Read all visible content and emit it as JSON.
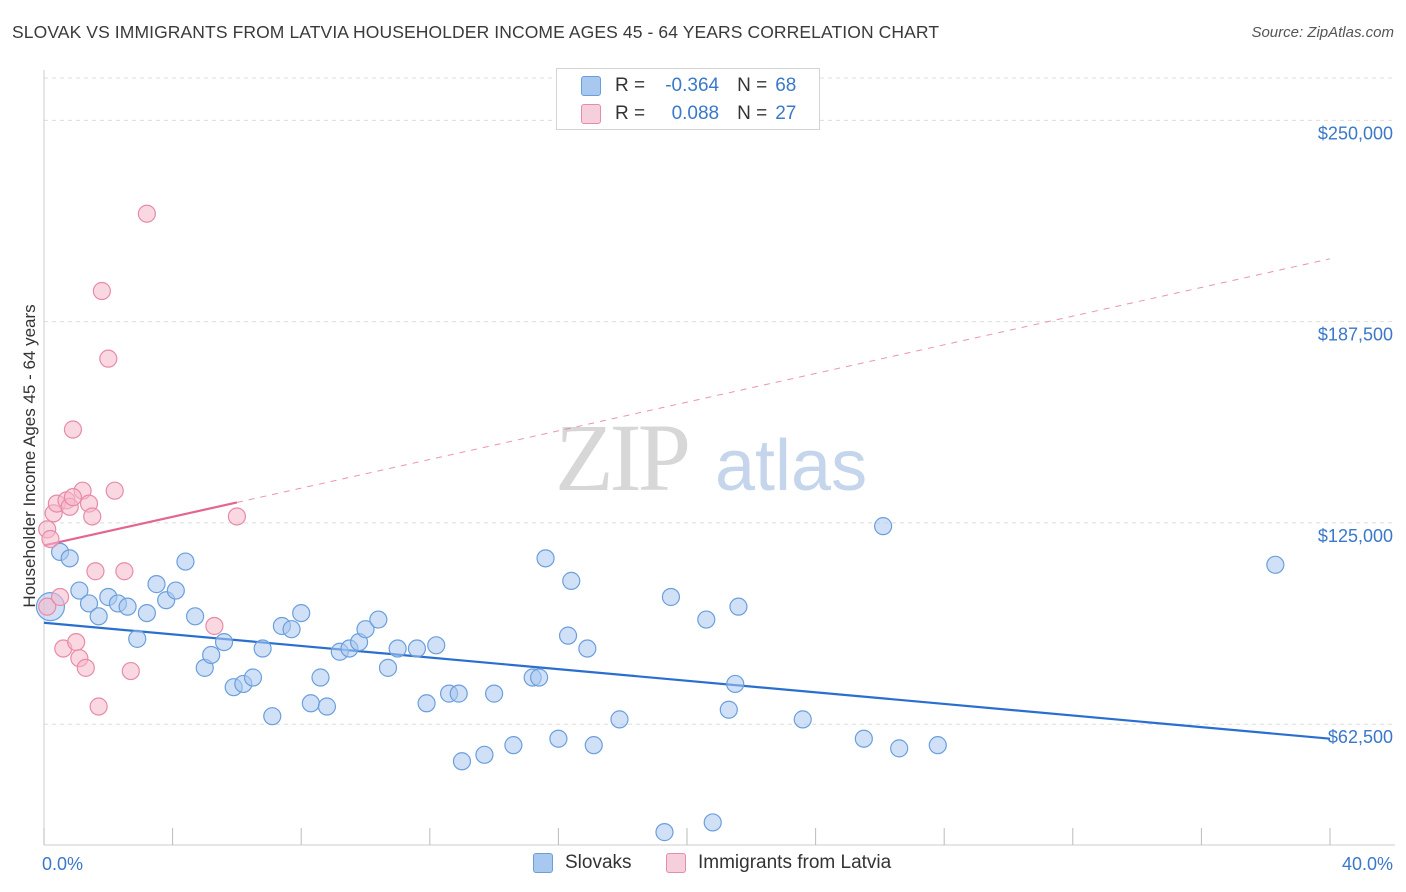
{
  "title": "SLOVAK VS IMMIGRANTS FROM LATVIA HOUSEHOLDER INCOME AGES 45 - 64 YEARS CORRELATION CHART",
  "source": "Source: ZipAtlas.com",
  "watermark": {
    "zip": "ZIP",
    "atlas": "atlas"
  },
  "colors": {
    "blue_fill": "#a9c8f0",
    "blue_stroke": "#6b9fdc",
    "blue_line": "#2a6fcf",
    "pink_fill": "#f6b8cb",
    "pink_stroke": "#e88ba8",
    "pink_line": "#e46592",
    "axis_text": "#3a78c9",
    "grid": "#dddddd"
  },
  "legend": {
    "rows": [
      {
        "r_label": "R =",
        "r_value": "-0.364",
        "n_label": "N =",
        "n_value": "68"
      },
      {
        "r_label": "R =",
        "r_value": "0.088",
        "n_label": "N =",
        "n_value": "27"
      }
    ]
  },
  "bottom_legend": {
    "series1": "Slovaks",
    "series2": "Immigrants from Latvia"
  },
  "chart_data": {
    "type": "scatter",
    "title": "SLOVAK VS IMMIGRANTS FROM LATVIA HOUSEHOLDER INCOME AGES 45 - 64 YEARS CORRELATION CHART",
    "xlabel": "",
    "ylabel": "Householder Income Ages 45 - 64 years",
    "xlim": [
      0,
      40
    ],
    "ylim": [
      25000,
      265000
    ],
    "x_tick_labels": {
      "left": "0.0%",
      "right": "40.0%"
    },
    "y_ticks": [
      {
        "value": 62500,
        "label": "$62,500"
      },
      {
        "value": 125000,
        "label": "$125,000"
      },
      {
        "value": 187500,
        "label": "$187,500"
      },
      {
        "value": 250000,
        "label": "$250,000"
      }
    ],
    "x_minor_ticks": [
      0,
      4,
      8,
      12,
      16,
      20,
      24,
      28,
      32,
      36,
      40
    ],
    "series": [
      {
        "name": "Slovaks",
        "color": "blue",
        "r": -0.364,
        "n": 68,
        "trend": {
          "x0": 0,
          "y0": 94000,
          "x1": 40,
          "y1": 58000,
          "dashed_from": null
        },
        "points": [
          [
            0.2,
            99000
          ],
          [
            0.5,
            116000
          ],
          [
            0.8,
            114000
          ],
          [
            1.1,
            104000
          ],
          [
            1.4,
            100000
          ],
          [
            1.7,
            96000
          ],
          [
            2.0,
            102000
          ],
          [
            2.3,
            100000
          ],
          [
            2.6,
            99000
          ],
          [
            2.9,
            89000
          ],
          [
            3.2,
            97000
          ],
          [
            3.5,
            106000
          ],
          [
            3.8,
            101000
          ],
          [
            4.1,
            104000
          ],
          [
            4.4,
            113000
          ],
          [
            4.7,
            96000
          ],
          [
            5.0,
            80000
          ],
          [
            5.2,
            84000
          ],
          [
            5.6,
            88000
          ],
          [
            5.9,
            74000
          ],
          [
            6.2,
            75000
          ],
          [
            6.5,
            77000
          ],
          [
            6.8,
            86000
          ],
          [
            7.1,
            65000
          ],
          [
            7.4,
            93000
          ],
          [
            7.7,
            92000
          ],
          [
            8.0,
            97000
          ],
          [
            8.3,
            69000
          ],
          [
            8.6,
            77000
          ],
          [
            8.8,
            68000
          ],
          [
            9.2,
            85000
          ],
          [
            9.5,
            86000
          ],
          [
            9.8,
            88000
          ],
          [
            10.0,
            92000
          ],
          [
            10.4,
            95000
          ],
          [
            10.7,
            80000
          ],
          [
            11.0,
            86000
          ],
          [
            11.6,
            86000
          ],
          [
            11.9,
            69000
          ],
          [
            12.2,
            87000
          ],
          [
            12.6,
            72000
          ],
          [
            12.9,
            72000
          ],
          [
            13.0,
            51000
          ],
          [
            13.7,
            53000
          ],
          [
            14.0,
            72000
          ],
          [
            14.6,
            56000
          ],
          [
            15.2,
            77000
          ],
          [
            15.4,
            77000
          ],
          [
            15.6,
            114000
          ],
          [
            16.0,
            58000
          ],
          [
            16.3,
            90000
          ],
          [
            16.4,
            107000
          ],
          [
            16.9,
            86000
          ],
          [
            17.1,
            56000
          ],
          [
            17.9,
            64000
          ],
          [
            19.5,
            102000
          ],
          [
            19.3,
            29000
          ],
          [
            20.6,
            95000
          ],
          [
            20.8,
            32000
          ],
          [
            21.3,
            67000
          ],
          [
            21.5,
            75000
          ],
          [
            21.6,
            99000
          ],
          [
            23.6,
            64000
          ],
          [
            25.5,
            58000
          ],
          [
            26.1,
            124000
          ],
          [
            26.6,
            55000
          ],
          [
            27.8,
            56000
          ],
          [
            38.3,
            112000
          ]
        ]
      },
      {
        "name": "Immigrants from Latvia",
        "color": "pink",
        "r": 0.088,
        "n": 27,
        "trend": {
          "x0": 0,
          "y0": 118000,
          "x1": 40,
          "y1": 207000,
          "dashed_from": 6
        },
        "points": [
          [
            0.1,
            99000
          ],
          [
            0.1,
            123000
          ],
          [
            0.2,
            120000
          ],
          [
            0.3,
            128000
          ],
          [
            0.4,
            131000
          ],
          [
            0.5,
            102000
          ],
          [
            0.6,
            86000
          ],
          [
            0.7,
            132000
          ],
          [
            0.8,
            130000
          ],
          [
            0.9,
            154000
          ],
          [
            1.0,
            88000
          ],
          [
            1.1,
            83000
          ],
          [
            1.2,
            135000
          ],
          [
            1.3,
            80000
          ],
          [
            1.4,
            131000
          ],
          [
            1.5,
            127000
          ],
          [
            1.6,
            110000
          ],
          [
            1.7,
            68000
          ],
          [
            1.8,
            197000
          ],
          [
            2.0,
            176000
          ],
          [
            2.2,
            135000
          ],
          [
            2.5,
            110000
          ],
          [
            2.7,
            79000
          ],
          [
            3.2,
            221000
          ],
          [
            5.3,
            93000
          ],
          [
            6.0,
            127000
          ],
          [
            0.9,
            133000
          ]
        ]
      }
    ]
  }
}
